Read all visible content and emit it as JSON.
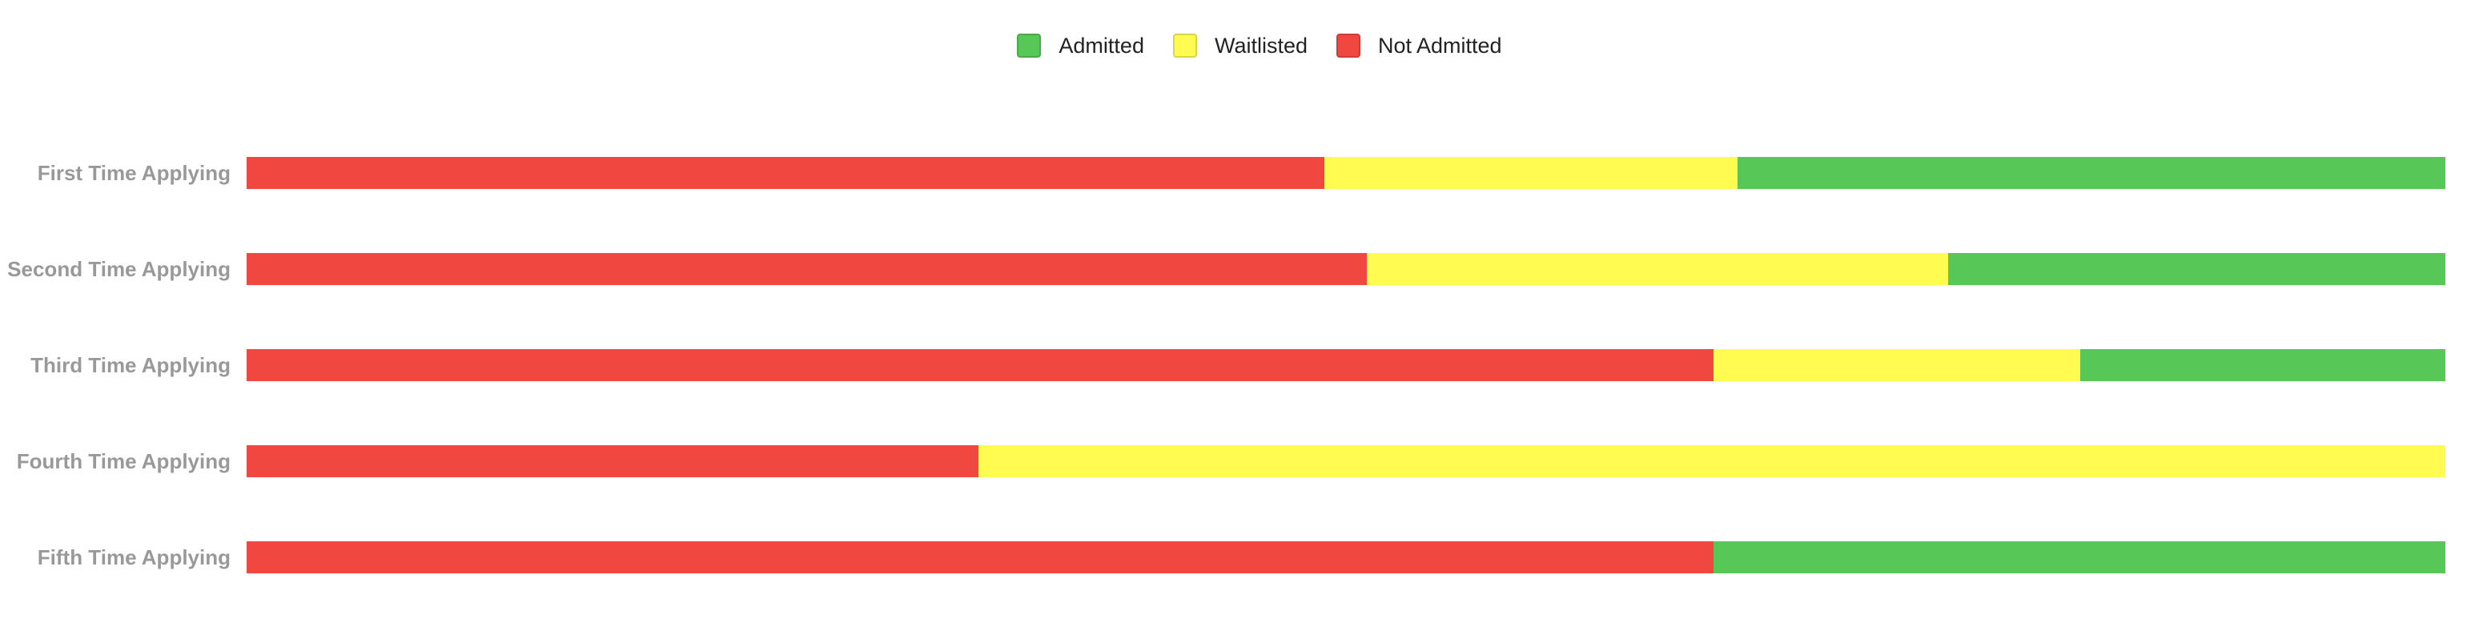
{
  "legend": {
    "items": [
      {
        "label": "Admitted",
        "color": "#57C857"
      },
      {
        "label": "Waitlisted",
        "color": "#FFFB51"
      },
      {
        "label": "Not Admitted",
        "color": "#F04840"
      }
    ]
  },
  "colors": {
    "admitted": "#57C857",
    "waitlisted": "#FFFB51",
    "not_admitted": "#F04840",
    "label_text": "#999999",
    "legend_text": "#222222"
  },
  "rows": [
    {
      "label": "First Time Applying",
      "not_admitted": 49.0,
      "waitlisted": 18.8,
      "admitted": 32.2
    },
    {
      "label": "Second Time Applying",
      "not_admitted": 50.9,
      "waitlisted": 26.4,
      "admitted": 22.6
    },
    {
      "label": "Third Time Applying",
      "not_admitted": 66.7,
      "waitlisted": 16.7,
      "admitted": 16.6
    },
    {
      "label": "Fourth Time Applying",
      "not_admitted": 33.3,
      "waitlisted": 66.7,
      "admitted": 0
    },
    {
      "label": "Fifth Time Applying",
      "not_admitted": 66.7,
      "waitlisted": 0,
      "admitted": 33.3
    }
  ],
  "chart_data": {
    "type": "bar",
    "orientation": "horizontal",
    "stacked": true,
    "normalized_percent": true,
    "title": "",
    "xlabel": "",
    "ylabel": "",
    "categories": [
      "First Time Applying",
      "Second Time Applying",
      "Third Time Applying",
      "Fourth Time Applying",
      "Fifth Time Applying"
    ],
    "series": [
      {
        "name": "Not Admitted",
        "color": "#F04840",
        "values": [
          49.0,
          50.9,
          66.7,
          33.3,
          66.7
        ]
      },
      {
        "name": "Waitlisted",
        "color": "#FFFB51",
        "values": [
          18.8,
          26.4,
          16.7,
          66.7,
          0
        ]
      },
      {
        "name": "Admitted",
        "color": "#57C857",
        "values": [
          32.2,
          22.6,
          16.6,
          0,
          33.3
        ]
      }
    ],
    "legend": [
      "Admitted",
      "Waitlisted",
      "Not Admitted"
    ],
    "legend_position": "top",
    "xlim": [
      0,
      100
    ],
    "grid": false,
    "axis_ticks_visible": false
  }
}
